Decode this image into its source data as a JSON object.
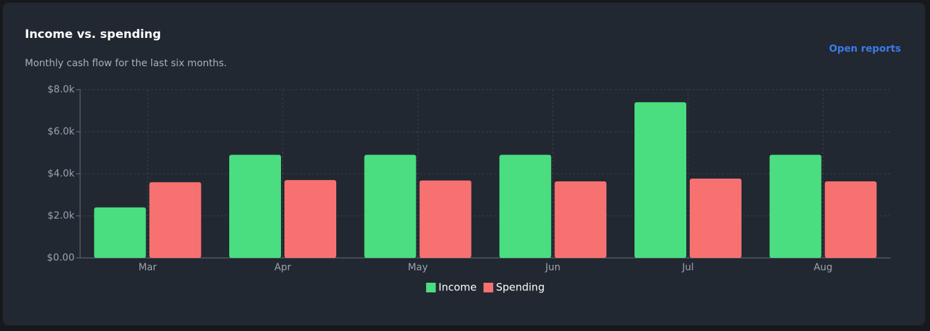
{
  "link": "Open reports",
  "chart_data": {
    "type": "bar",
    "title": "Income vs. spending",
    "subtitle": "Monthly cash flow for the last six months.",
    "categories": [
      "Mar",
      "Apr",
      "May",
      "Jun",
      "Jul",
      "Aug"
    ],
    "series": [
      {
        "name": "Income",
        "color": "#4ade80",
        "values": [
          2400,
          4900,
          4900,
          4900,
          7400,
          4900
        ]
      },
      {
        "name": "Spending",
        "color": "#f87171",
        "values": [
          3600,
          3700,
          3680,
          3640,
          3770,
          3640
        ]
      }
    ],
    "ylim": [
      0,
      8000
    ],
    "yticks": [
      {
        "value": 0,
        "label": "$0.00"
      },
      {
        "value": 2000,
        "label": "$2.0k"
      },
      {
        "value": 4000,
        "label": "$4.0k"
      },
      {
        "value": 6000,
        "label": "$6.0k"
      },
      {
        "value": 8000,
        "label": "$8.0k"
      }
    ],
    "grid": true,
    "legend": "bottom"
  }
}
